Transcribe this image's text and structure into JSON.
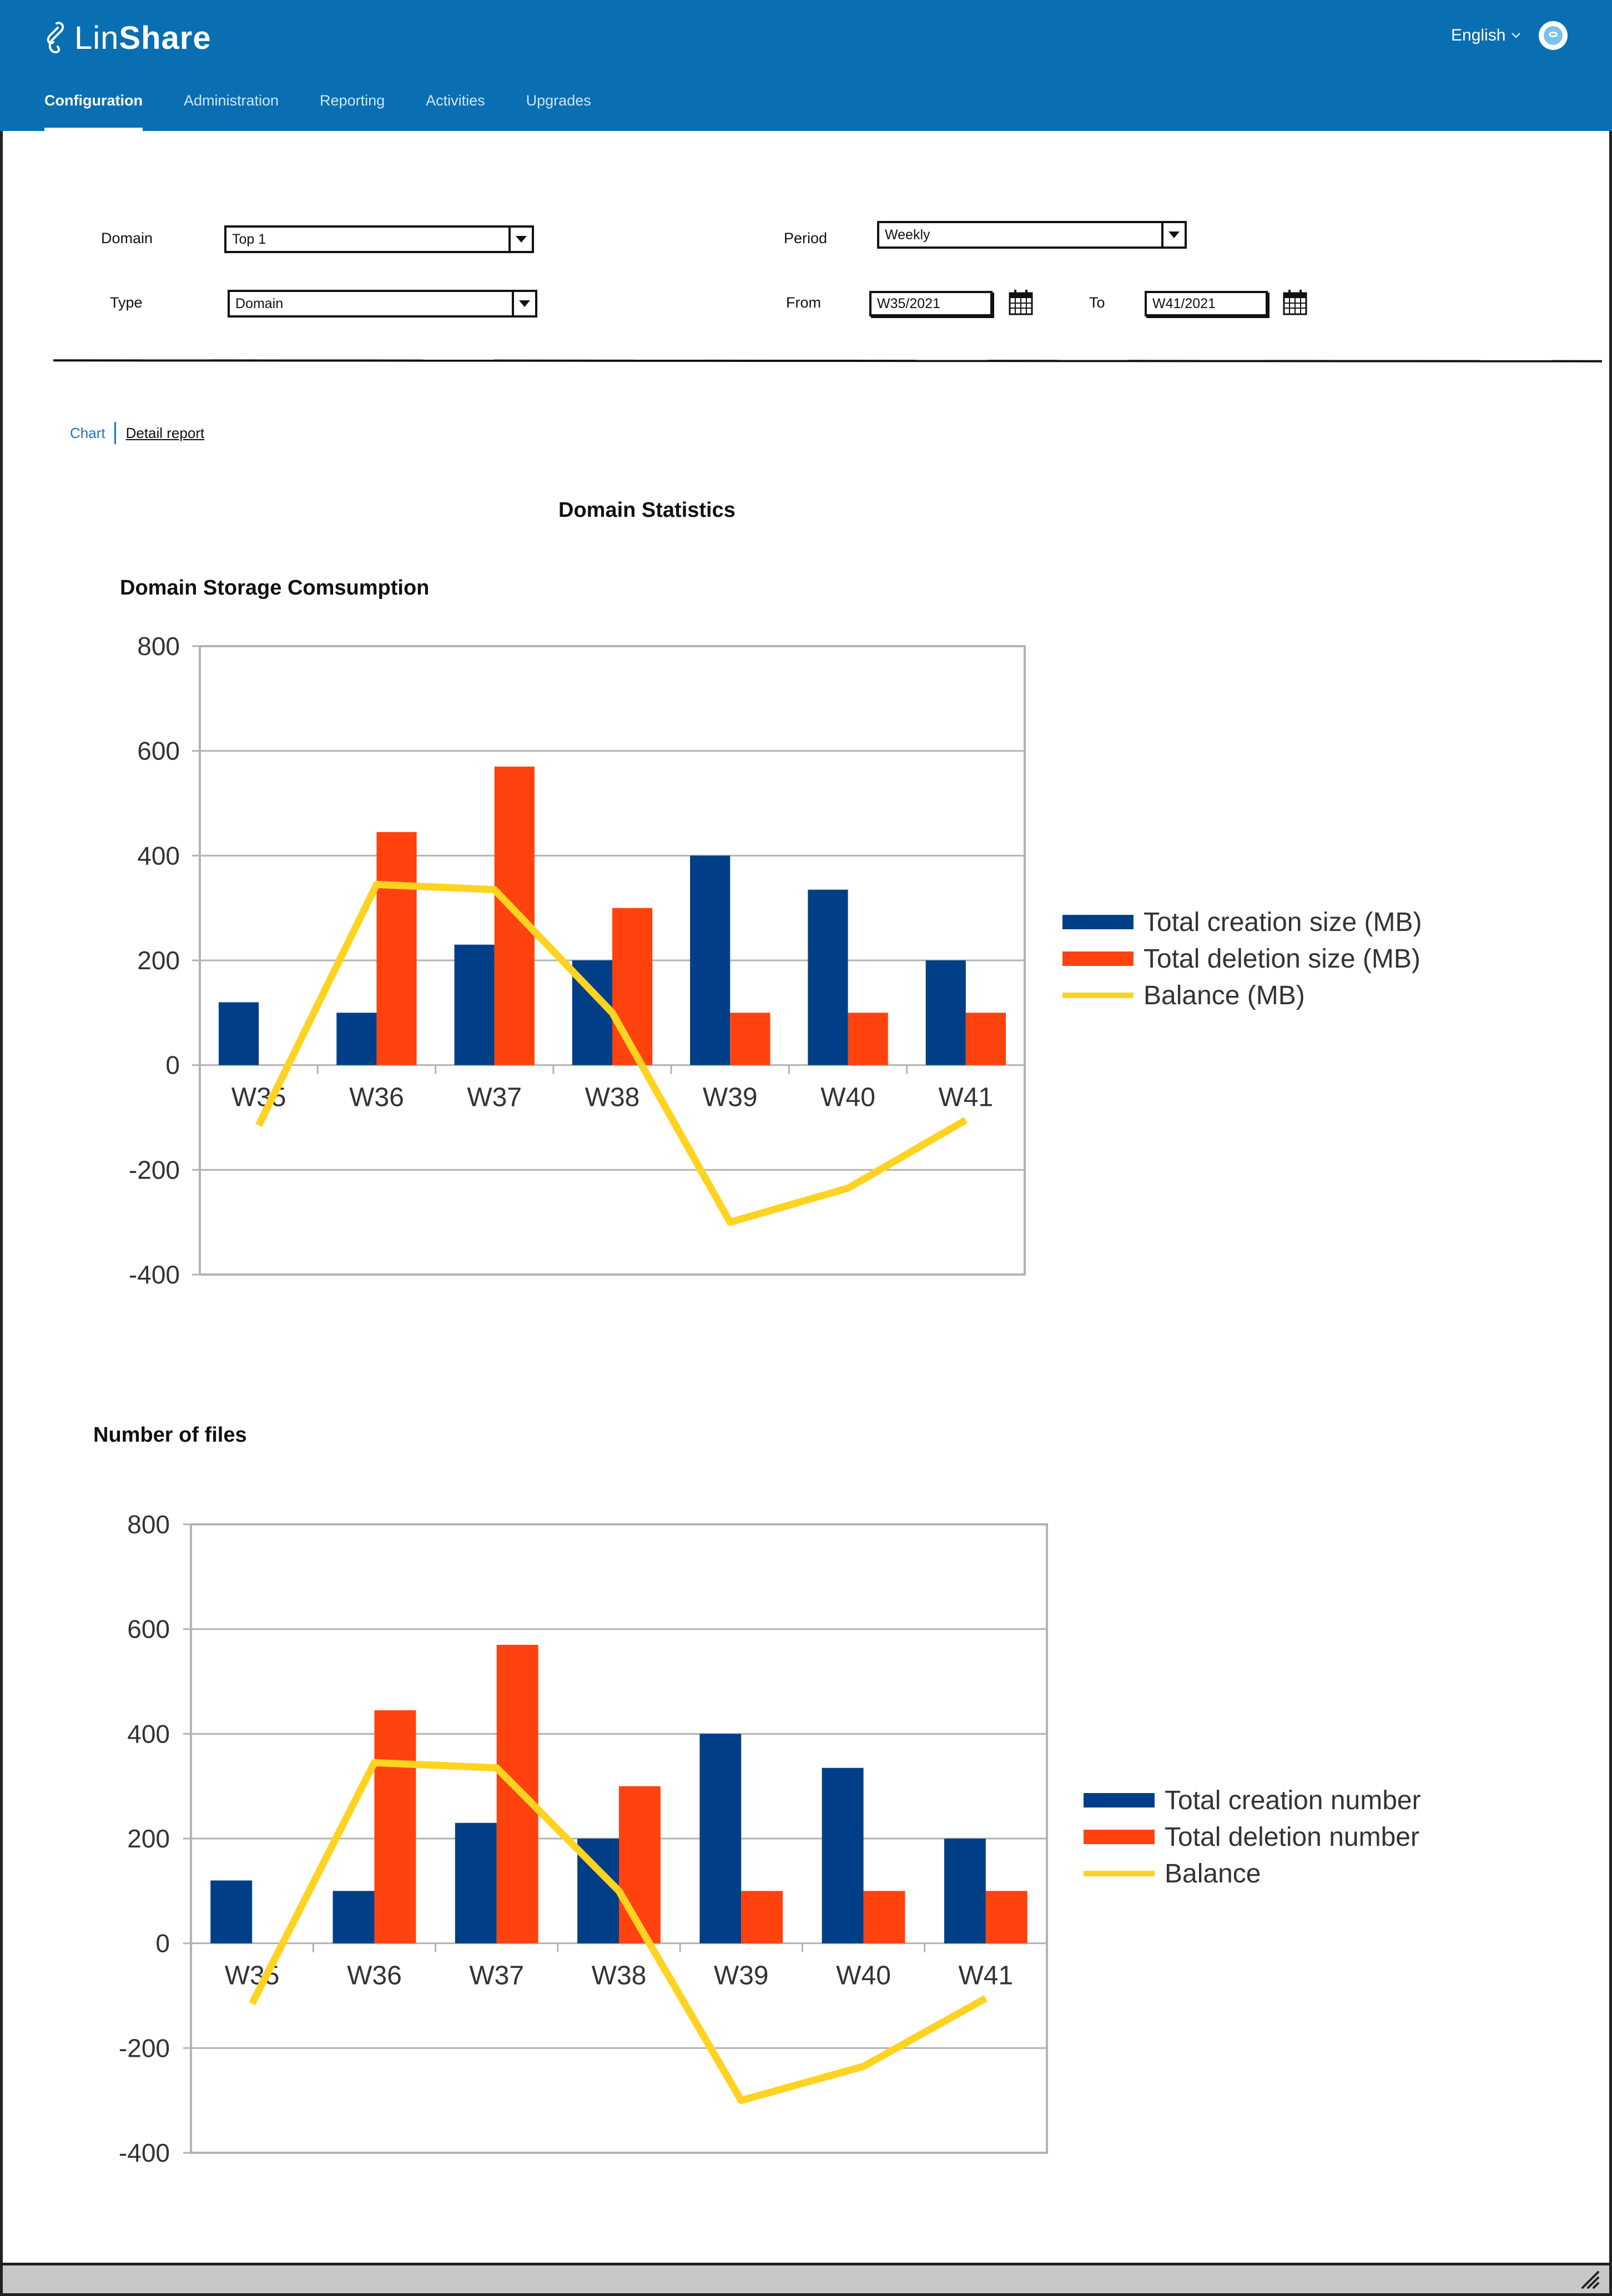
{
  "header": {
    "logo_part1": "Lin",
    "logo_part2": "Share",
    "language": "English",
    "tabs": [
      {
        "label": "Configuration",
        "active": true
      },
      {
        "label": "Administration",
        "active": false
      },
      {
        "label": "Reporting",
        "active": false
      },
      {
        "label": "Activities",
        "active": false
      },
      {
        "label": "Upgrades",
        "active": false
      }
    ]
  },
  "filters": {
    "domain_label": "Domain",
    "domain_value": "Top 1",
    "type_label": "Type",
    "type_value": "Domain",
    "period_label": "Period",
    "period_value": "Weekly",
    "from_label": "From",
    "from_value": "W35/2021",
    "to_label": "To",
    "to_value": "W41/2021"
  },
  "view_tabs": {
    "chart": "Chart",
    "detail": "Detail report"
  },
  "page_title": "Domain Statistics",
  "colors": {
    "creation": "#003f87",
    "deletion": "#ff420e",
    "balance": "#ffd320",
    "header": "#0a6fb2"
  },
  "chart_data": [
    {
      "type": "bar",
      "title": "Domain Storage Comsumption",
      "categories": [
        "W35",
        "W36",
        "W37",
        "W38",
        "W39",
        "W40",
        "W41"
      ],
      "ylim": [
        -400,
        800
      ],
      "yticks": [
        "800",
        "600",
        "400",
        "200",
        "0",
        "-200",
        "-400"
      ],
      "grid": true,
      "legend_position": "right",
      "series": [
        {
          "name": "Total creation size (MB)",
          "type": "bar",
          "values": [
            120,
            100,
            230,
            200,
            400,
            335,
            200
          ]
        },
        {
          "name": "Total deletion size (MB)",
          "type": "bar",
          "values": [
            0,
            445,
            570,
            300,
            100,
            100,
            100
          ]
        },
        {
          "name": "Balance (MB)",
          "type": "line",
          "values": [
            -115,
            345,
            335,
            100,
            -300,
            -235,
            -105
          ]
        }
      ]
    },
    {
      "type": "bar",
      "title": "Number of files",
      "categories": [
        "W35",
        "W36",
        "W37",
        "W38",
        "W39",
        "W40",
        "W41"
      ],
      "ylim": [
        -400,
        800
      ],
      "yticks": [
        "800",
        "600",
        "400",
        "200",
        "0",
        "-200",
        "-400"
      ],
      "grid": true,
      "legend_position": "right",
      "series": [
        {
          "name": "Total creation number",
          "type": "bar",
          "values": [
            120,
            100,
            230,
            200,
            400,
            335,
            200
          ]
        },
        {
          "name": "Total deletion number",
          "type": "bar",
          "values": [
            0,
            445,
            570,
            300,
            100,
            100,
            100
          ]
        },
        {
          "name": "Balance",
          "type": "line",
          "values": [
            -115,
            345,
            335,
            100,
            -300,
            -235,
            -105
          ]
        }
      ]
    }
  ]
}
